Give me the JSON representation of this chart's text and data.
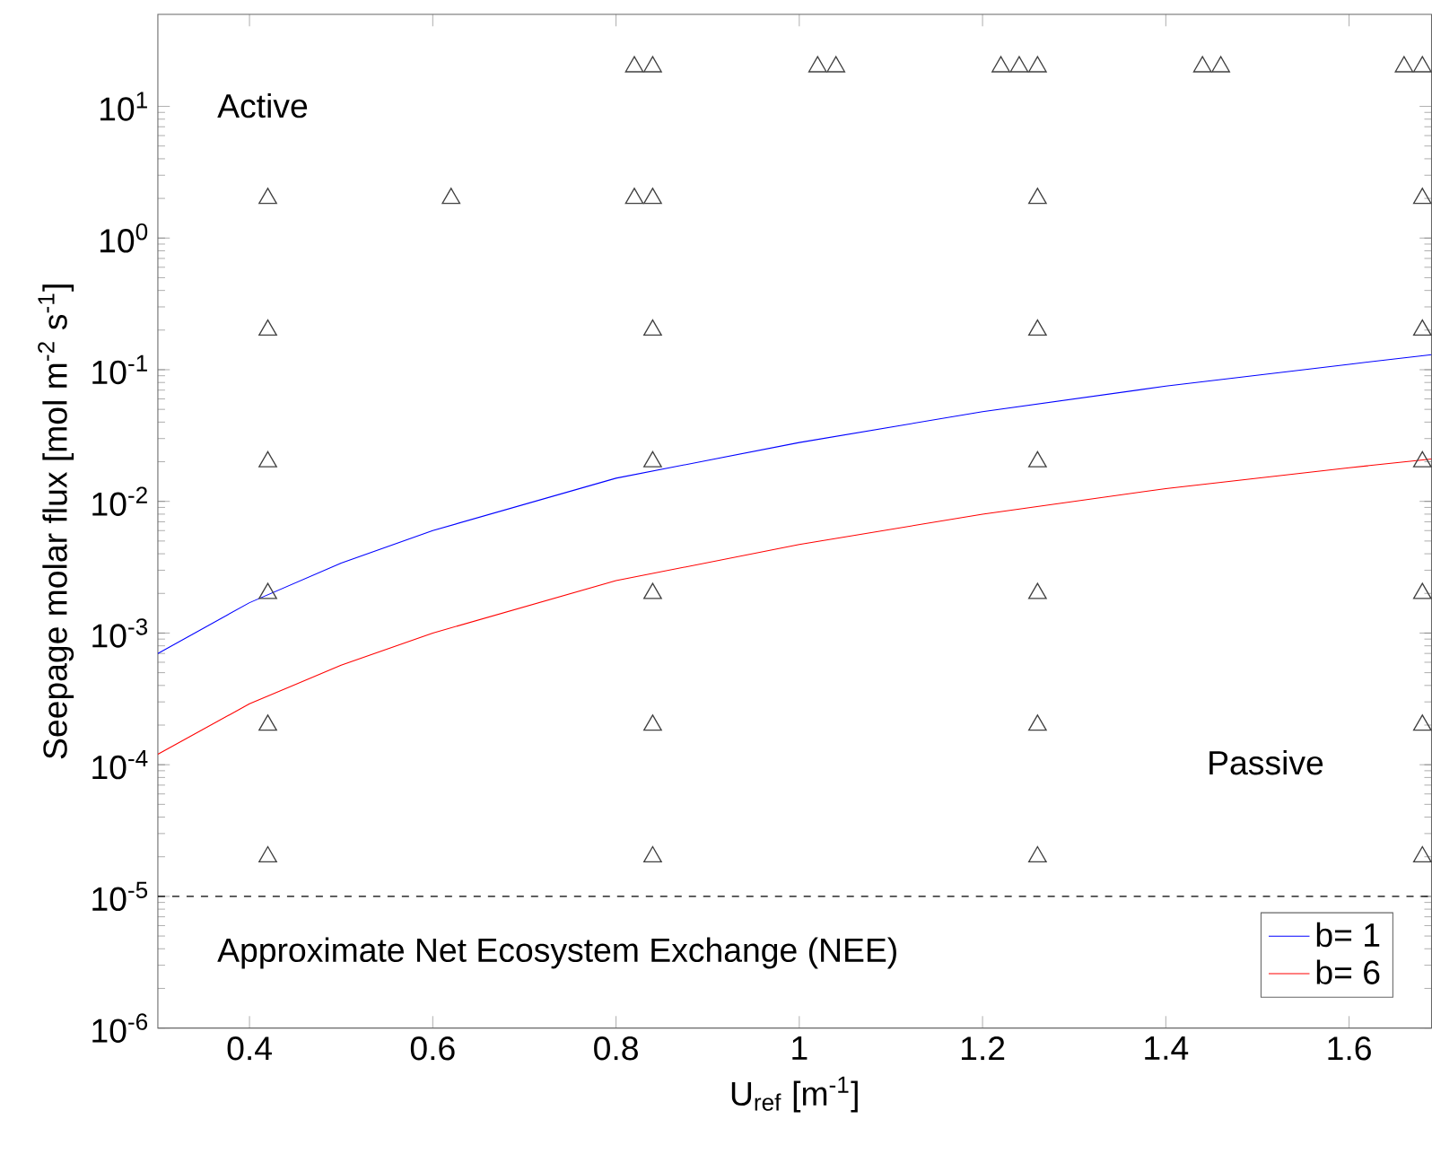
{
  "chart_data": {
    "type": "line",
    "xlabel": "U$_{ref}$ [m$^{-1}$]",
    "ylabel": "Seepage molar flux [mol m$^{-2}$ s$^{-1}$]",
    "log": "y",
    "xlim": [
      0.3,
      1.69
    ],
    "ylim": [
      1e-06,
      50
    ],
    "xticks": [
      0.4,
      0.6,
      0.8,
      1,
      1.2,
      1.4,
      1.6
    ],
    "yticks": [
      {
        "value": 1e-06,
        "label": "10$^{-6}$"
      },
      {
        "value": 1e-05,
        "label": "10$^{-5}$"
      },
      {
        "value": 0.0001,
        "label": "10$^{-4}$"
      },
      {
        "value": 0.001,
        "label": "10$^{-3}$"
      },
      {
        "value": 0.01,
        "label": "10$^{-2}$"
      },
      {
        "value": 0.1,
        "label": "10$^{-1}$"
      },
      {
        "value": 1,
        "label": "10$^{0}$"
      },
      {
        "value": 10,
        "label": "10$^{1}$"
      }
    ],
    "series": [
      {
        "name": "b=  1",
        "color": "#0000ff",
        "x": [
          0.3,
          0.4,
          0.5,
          0.6,
          0.8,
          1.0,
          1.2,
          1.4,
          1.6,
          1.69
        ],
        "values": [
          0.0007,
          0.0017,
          0.0034,
          0.006,
          0.015,
          0.028,
          0.048,
          0.075,
          0.11,
          0.13
        ]
      },
      {
        "name": "b=  6",
        "color": "#ff0000",
        "x": [
          0.3,
          0.4,
          0.5,
          0.6,
          0.8,
          1.0,
          1.2,
          1.4,
          1.6,
          1.69
        ],
        "values": [
          0.00012,
          0.00029,
          0.00057,
          0.001,
          0.0025,
          0.0047,
          0.008,
          0.0125,
          0.018,
          0.021
        ]
      },
      {
        "type": "scatter",
        "color": "#404040",
        "marker": "triangle",
        "x": [
          0.82,
          0.84,
          1.02,
          1.04,
          1.22,
          1.24,
          1.26,
          1.44,
          1.46,
          1.66,
          1.68,
          0.42,
          0.62,
          0.82,
          0.84,
          1.26,
          1.68,
          0.42,
          0.84,
          1.26,
          1.68,
          0.42,
          0.84,
          1.26,
          1.68,
          0.42,
          0.84,
          1.26,
          1.68,
          0.42,
          0.84,
          1.26,
          1.68,
          0.42,
          0.84,
          1.26,
          1.68
        ],
        "values": [
          20,
          20,
          20,
          20,
          20,
          20,
          20,
          20,
          20,
          20,
          20,
          2,
          2,
          2,
          2,
          2,
          2,
          0.2,
          0.2,
          0.2,
          0.2,
          0.02,
          0.02,
          0.02,
          0.02,
          0.002,
          0.002,
          0.002,
          0.002,
          0.0002,
          0.0002,
          0.0002,
          0.0002,
          2e-05,
          2e-05,
          2e-05,
          2e-05
        ]
      }
    ],
    "ref_lines": [
      {
        "axis": "y",
        "value": 1e-05,
        "color": "#000000",
        "line_style": "dashed"
      }
    ],
    "annotations": [
      "Active",
      "Passive",
      "Approximate Net Ecosystem Exchange (NEE)"
    ],
    "legend": "bottom right",
    "grid": false
  }
}
